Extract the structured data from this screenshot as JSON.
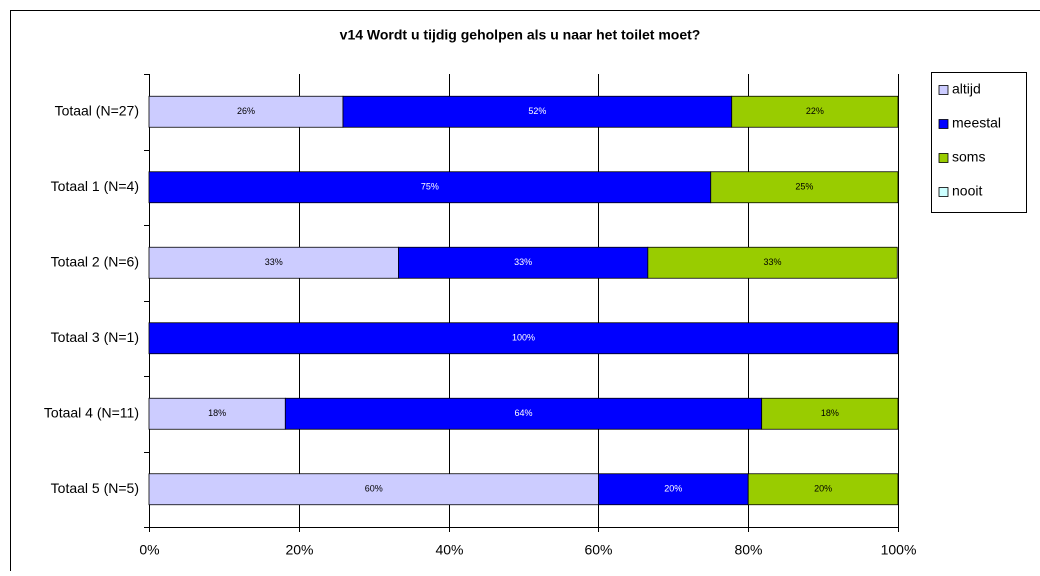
{
  "chart_data": {
    "type": "stacked_barh",
    "title": "v14 Wordt u tijdig geholpen als u naar het toilet moet?",
    "categories": [
      "Totaal (N=27)",
      "Totaal 1 (N=4)",
      "Totaal 2 (N=6)",
      "Totaal 3 (N=1)",
      "Totaal 4 (N=11)",
      "Totaal 5 (N=5)"
    ],
    "series": [
      {
        "name": "altijd",
        "color": "#ccccff",
        "label_color": "#000000",
        "values": [
          25.9,
          0,
          33.3,
          0,
          18.2,
          60
        ],
        "value_labels": [
          "26%",
          null,
          "33%",
          null,
          "18%",
          "60%"
        ]
      },
      {
        "name": "meestal",
        "color": "#0000ff",
        "label_color": "#ffffff",
        "values": [
          51.9,
          75,
          33.3,
          100,
          63.6,
          20
        ],
        "value_labels": [
          "52%",
          "75%",
          "33%",
          "100%",
          "64%",
          "20%"
        ]
      },
      {
        "name": "soms",
        "color": "#99cc00",
        "label_color": "#000000",
        "values": [
          22.2,
          25,
          33.3,
          0,
          18.2,
          20
        ],
        "value_labels": [
          "22%",
          "25%",
          "33%",
          null,
          "18%",
          "20%"
        ]
      },
      {
        "name": "nooit",
        "color": "#ccffff",
        "label_color": "#000000",
        "values": [
          0,
          0,
          0,
          0,
          0,
          0
        ],
        "value_labels": [
          null,
          null,
          null,
          null,
          null,
          null
        ]
      }
    ],
    "xlim": [
      0,
      100
    ],
    "xticks": [
      {
        "value": 0,
        "label": "0%"
      },
      {
        "value": 20,
        "label": "20%"
      },
      {
        "value": 40,
        "label": "40%"
      },
      {
        "value": 60,
        "label": "60%"
      },
      {
        "value": 80,
        "label": "80%"
      },
      {
        "value": 100,
        "label": "100%"
      }
    ],
    "grid": true,
    "legend": "right"
  }
}
